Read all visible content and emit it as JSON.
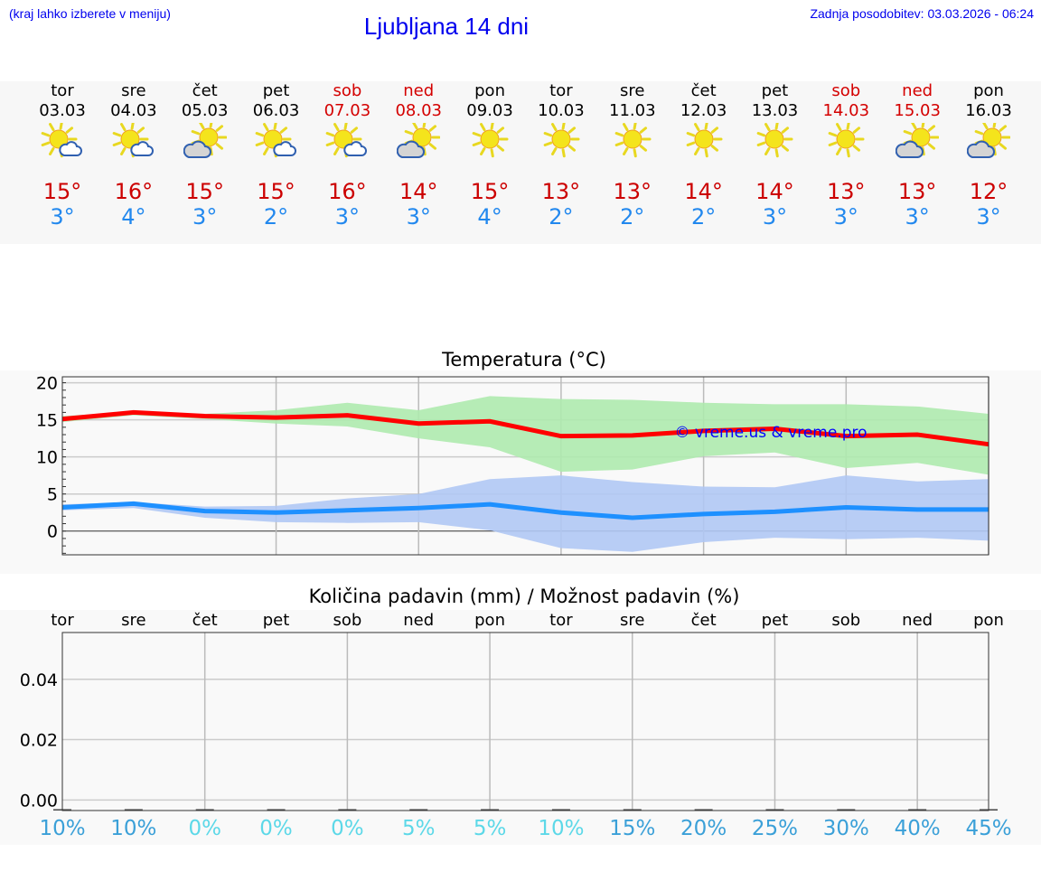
{
  "header": {
    "hint": "(kraj lahko izberete v meniju)",
    "title": "Ljubljana 14 dni",
    "updated": "Zadnja posodobitev: 03.03.2026 - 06:24"
  },
  "days": [
    {
      "name": "tor",
      "date": "03.03",
      "weekend": false,
      "icon": "partly-cloudy",
      "max": "15°",
      "min": "3°"
    },
    {
      "name": "sre",
      "date": "04.03",
      "weekend": false,
      "icon": "partly-cloudy",
      "max": "16°",
      "min": "4°"
    },
    {
      "name": "čet",
      "date": "05.03",
      "weekend": false,
      "icon": "mostly-cloudy",
      "max": "15°",
      "min": "3°"
    },
    {
      "name": "pet",
      "date": "06.03",
      "weekend": false,
      "icon": "partly-cloudy",
      "max": "15°",
      "min": "2°"
    },
    {
      "name": "sob",
      "date": "07.03",
      "weekend": true,
      "icon": "partly-cloudy",
      "max": "16°",
      "min": "3°"
    },
    {
      "name": "ned",
      "date": "08.03",
      "weekend": true,
      "icon": "mostly-cloudy",
      "max": "14°",
      "min": "3°"
    },
    {
      "name": "pon",
      "date": "09.03",
      "weekend": false,
      "icon": "sunny",
      "max": "15°",
      "min": "4°"
    },
    {
      "name": "tor",
      "date": "10.03",
      "weekend": false,
      "icon": "sunny",
      "max": "13°",
      "min": "2°"
    },
    {
      "name": "sre",
      "date": "11.03",
      "weekend": false,
      "icon": "sunny",
      "max": "13°",
      "min": "2°"
    },
    {
      "name": "čet",
      "date": "12.03",
      "weekend": false,
      "icon": "sunny",
      "max": "14°",
      "min": "2°"
    },
    {
      "name": "pet",
      "date": "13.03",
      "weekend": false,
      "icon": "sunny",
      "max": "14°",
      "min": "3°"
    },
    {
      "name": "sob",
      "date": "14.03",
      "weekend": true,
      "icon": "sunny",
      "max": "13°",
      "min": "3°"
    },
    {
      "name": "ned",
      "date": "15.03",
      "weekend": true,
      "icon": "mostly-cloudy",
      "max": "13°",
      "min": "3°"
    },
    {
      "name": "pon",
      "date": "16.03",
      "weekend": false,
      "icon": "mostly-cloudy",
      "max": "12°",
      "min": "3°"
    }
  ],
  "chart_data": [
    {
      "type": "line",
      "title": "Temperatura (°C)",
      "watermark": "© vreme.us & vreme.pro",
      "ylim": [
        -3.2,
        20.8
      ],
      "yticks": [
        0,
        5,
        10,
        15,
        20
      ],
      "grid": true,
      "series": [
        {
          "key": "max",
          "color": "#ff0000",
          "band_color": "#aeeaae",
          "values": [
            15.1,
            16,
            15.5,
            15.3,
            15.6,
            14.5,
            14.8,
            12.8,
            12.9,
            13.5,
            13.8,
            12.8,
            13,
            11.7
          ],
          "upper": [
            15.5,
            16.1,
            15.8,
            16.3,
            17.3,
            16.3,
            18.2,
            17.8,
            17.7,
            17.3,
            17.1,
            17.1,
            16.8,
            15.8
          ],
          "lower": [
            14.7,
            15.6,
            15.1,
            14.5,
            14.1,
            12.5,
            11.3,
            8,
            8.3,
            10.1,
            10.6,
            8.5,
            9.2,
            7.6
          ]
        },
        {
          "key": "min",
          "color": "#1e90ff",
          "band_color": "#b0c8f4",
          "values": [
            3.2,
            3.7,
            2.7,
            2.5,
            2.8,
            3.1,
            3.6,
            2.5,
            1.8,
            2.3,
            2.6,
            3.2,
            2.9,
            2.9
          ],
          "upper": [
            3.6,
            3.9,
            3.3,
            3.4,
            4.4,
            5,
            7,
            7.5,
            6.6,
            6,
            5.9,
            7.5,
            6.7,
            7
          ],
          "lower": [
            2.8,
            3.1,
            1.8,
            1.2,
            1.1,
            1.2,
            0.1,
            -2.3,
            -2.8,
            -1.5,
            -0.9,
            -1.1,
            -0.9,
            -1.3
          ]
        }
      ]
    },
    {
      "type": "bar",
      "title": "Količina padavin (mm) / Možnost padavin (%)",
      "categories": [
        "tor",
        "sre",
        "čet",
        "pet",
        "sob",
        "ned",
        "pon",
        "tor",
        "sre",
        "čet",
        "pet",
        "sob",
        "ned",
        "pon"
      ],
      "values": [
        0,
        0,
        0,
        0,
        0,
        0,
        0,
        0,
        0,
        0,
        0,
        0,
        0,
        0
      ],
      "ylim": [
        -0.0035,
        0.0555
      ],
      "yticks": [
        "0.00",
        "0.02",
        "0.04"
      ],
      "grid": true,
      "chance": [
        {
          "label": "10%",
          "color": "#3ba0d8"
        },
        {
          "label": "10%",
          "color": "#3ba0d8"
        },
        {
          "label": "0%",
          "color": "#5cd8e8"
        },
        {
          "label": "0%",
          "color": "#5cd8e8"
        },
        {
          "label": "0%",
          "color": "#5cd8e8"
        },
        {
          "label": "5%",
          "color": "#5cd8e8"
        },
        {
          "label": "5%",
          "color": "#5cd8e8"
        },
        {
          "label": "10%",
          "color": "#5cd8e8"
        },
        {
          "label": "15%",
          "color": "#3ba0d8"
        },
        {
          "label": "20%",
          "color": "#3ba0d8"
        },
        {
          "label": "25%",
          "color": "#3ba0d8"
        },
        {
          "label": "30%",
          "color": "#3ba0d8"
        },
        {
          "label": "40%",
          "color": "#3ba0d8"
        },
        {
          "label": "45%",
          "color": "#3ba0d8"
        }
      ]
    }
  ]
}
